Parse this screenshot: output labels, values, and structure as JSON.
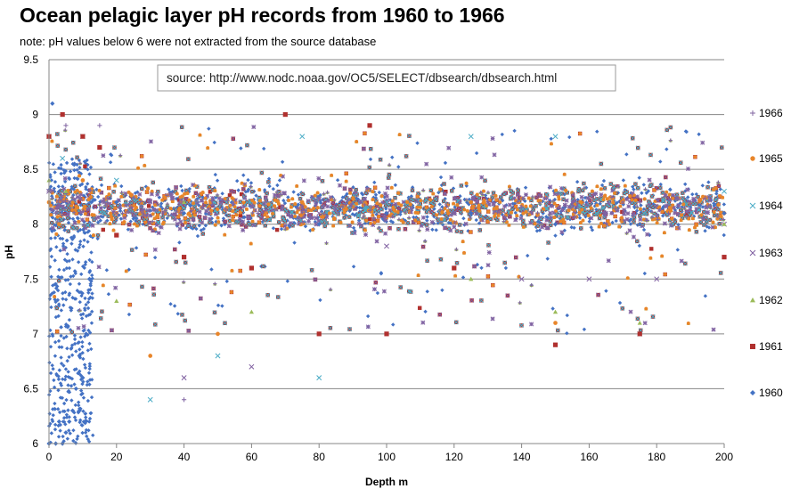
{
  "chart_data": {
    "type": "scatter",
    "title": "Ocean pelagic layer pH records from 1960 to 1966",
    "subtitle": "note: pH values below 6 were not extracted from the source database",
    "annotation": "source: http://www.nodc.noaa.gov/OC5/SELECT/dbsearch/dbsearch.html",
    "xlabel": "Depth m",
    "ylabel": "pH",
    "xlim": [
      0,
      200
    ],
    "ylim": [
      6,
      9.5
    ],
    "x_ticks": [
      "0",
      "20",
      "40",
      "60",
      "80",
      "100",
      "120",
      "140",
      "160",
      "180",
      "200"
    ],
    "y_ticks": [
      "6",
      "6.5",
      "7",
      "7.5",
      "8",
      "8.5",
      "9",
      "9.5"
    ],
    "grid": "horizontal",
    "legend_position": "right",
    "series": [
      {
        "name": "1966",
        "marker": "plus",
        "color": "#8064a2",
        "x": [
          0,
          2,
          5,
          15,
          20,
          40,
          62,
          80,
          100,
          125,
          150,
          175,
          200
        ],
        "y": [
          8.3,
          8.1,
          8.9,
          8.9,
          8.2,
          6.4,
          8.1,
          8.0,
          8.2,
          8.1,
          8.0,
          8.2,
          8.1
        ]
      },
      {
        "name": "1965",
        "marker": "circle",
        "color": "#e8852a",
        "x": [
          0,
          3,
          10,
          20,
          30,
          50,
          75,
          100,
          125,
          150,
          175,
          200
        ],
        "y": [
          8.2,
          8.0,
          8.4,
          8.1,
          6.8,
          7.0,
          8.2,
          7.0,
          8.2,
          7.1,
          8.0,
          8.1
        ]
      },
      {
        "name": "1964",
        "marker": "x",
        "color": "#4bacc6",
        "x": [
          0,
          4,
          10,
          20,
          30,
          50,
          75,
          80,
          100,
          125,
          150,
          175,
          200
        ],
        "y": [
          8.8,
          8.6,
          8.8,
          8.4,
          6.4,
          6.8,
          8.8,
          6.6,
          8.2,
          8.8,
          8.8,
          7.0,
          8.3
        ]
      },
      {
        "name": "1963",
        "marker": "x",
        "color": "#7f5fa0",
        "x": [
          0,
          6,
          20,
          40,
          60,
          80,
          100,
          120,
          140,
          160,
          180,
          200
        ],
        "y": [
          8.3,
          8.2,
          8.1,
          6.6,
          6.7,
          8.1,
          7.8,
          8.1,
          7.5,
          7.5,
          7.5,
          8.0
        ]
      },
      {
        "name": "1962",
        "marker": "triangle",
        "color": "#9bbb59",
        "x": [
          0,
          5,
          20,
          40,
          60,
          80,
          100,
          125,
          150,
          175,
          200
        ],
        "y": [
          8.4,
          8.3,
          7.3,
          8.2,
          7.2,
          7.0,
          7.0,
          7.5,
          7.2,
          7.1,
          8.0
        ]
      },
      {
        "name": "1961",
        "marker": "square",
        "color": "#b0302e",
        "x": [
          0,
          4,
          10,
          15,
          20,
          40,
          60,
          70,
          80,
          95,
          100,
          120,
          150,
          175,
          200
        ],
        "y": [
          8.8,
          9.0,
          8.8,
          8.7,
          7.9,
          7.7,
          7.6,
          9.0,
          7.0,
          8.9,
          7.0,
          7.6,
          6.9,
          7.0,
          7.7
        ]
      },
      {
        "name": "1960",
        "marker": "diamond",
        "color": "#4472c4",
        "x": [
          0,
          1,
          2,
          3,
          4,
          5,
          6,
          7,
          8,
          9,
          10,
          11,
          12,
          20,
          40,
          80,
          100,
          125,
          150,
          175,
          200
        ],
        "y": [
          6.0,
          9.1,
          6.0,
          6.2,
          6.0,
          6.1,
          6.2,
          6.3,
          6.5,
          6.8,
          6.6,
          7.0,
          7.5,
          8.2,
          8.1,
          8.0,
          8.1,
          8.1,
          8.0,
          8.0,
          8.1
        ]
      }
    ]
  }
}
